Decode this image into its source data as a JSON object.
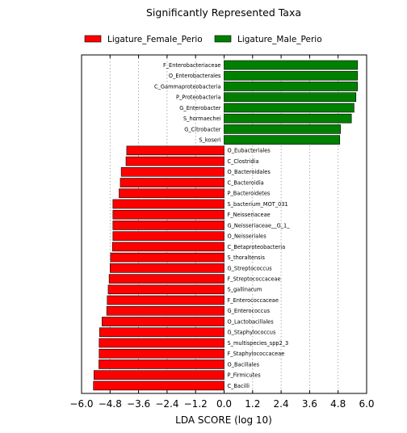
{
  "chart_data": {
    "type": "bar",
    "orientation": "horizontal",
    "title": "Significantly Represented Taxa",
    "xlabel": "LDA SCORE (log 10)",
    "xlim": [
      -6.0,
      6.0
    ],
    "xticks": [
      "−6.0",
      "−4.8",
      "−3.6",
      "−2.4",
      "−1.2",
      "0.0",
      "1.2",
      "2.4",
      "3.6",
      "4.8",
      "6.0"
    ],
    "xtick_values": [
      -6.0,
      -4.8,
      -3.6,
      -2.4,
      -1.2,
      0.0,
      1.2,
      2.4,
      3.6,
      4.8,
      6.0
    ],
    "grid": "vertical dotted",
    "legend_position": "top",
    "series": [
      {
        "name": "Ligature_Female_Perio",
        "color": "#ff0000"
      },
      {
        "name": "Ligature_Male_Perio",
        "color": "#008000"
      }
    ],
    "bars": [
      {
        "label": "F_Enterobacteriaceae",
        "value": 5.62,
        "group": "Ligature_Male_Perio"
      },
      {
        "label": "O_Enterobacterales",
        "value": 5.62,
        "group": "Ligature_Male_Perio"
      },
      {
        "label": "C_Gammaproteobacteria",
        "value": 5.62,
        "group": "Ligature_Male_Perio"
      },
      {
        "label": "P_Proteobacteria",
        "value": 5.55,
        "group": "Ligature_Male_Perio"
      },
      {
        "label": "G_Enterobacter",
        "value": 5.47,
        "group": "Ligature_Male_Perio"
      },
      {
        "label": "S_hormaechei",
        "value": 5.36,
        "group": "Ligature_Male_Perio"
      },
      {
        "label": "G_Citrobacter",
        "value": 4.9,
        "group": "Ligature_Male_Perio"
      },
      {
        "label": "S_koseri",
        "value": 4.87,
        "group": "Ligature_Male_Perio"
      },
      {
        "label": "O_Eubacteriales",
        "value": -4.1,
        "group": "Ligature_Female_Perio"
      },
      {
        "label": "C_Clostridia",
        "value": -4.13,
        "group": "Ligature_Female_Perio"
      },
      {
        "label": "O_Bacteroidales",
        "value": -4.33,
        "group": "Ligature_Female_Perio"
      },
      {
        "label": "C_Bacteroidia",
        "value": -4.37,
        "group": "Ligature_Female_Perio"
      },
      {
        "label": "P_Bacteroidetes",
        "value": -4.42,
        "group": "Ligature_Female_Perio"
      },
      {
        "label": "S_bacterium_MOT_031",
        "value": -4.68,
        "group": "Ligature_Female_Perio"
      },
      {
        "label": "F_Neisseriaceae",
        "value": -4.68,
        "group": "Ligature_Female_Perio"
      },
      {
        "label": "G_Neisseriaceae__G_1_",
        "value": -4.68,
        "group": "Ligature_Female_Perio"
      },
      {
        "label": "O_Neisseriales",
        "value": -4.68,
        "group": "Ligature_Female_Perio"
      },
      {
        "label": "C_Betaproteobacteria",
        "value": -4.7,
        "group": "Ligature_Female_Perio"
      },
      {
        "label": "S_thoraltensis",
        "value": -4.78,
        "group": "Ligature_Female_Perio"
      },
      {
        "label": "G_Streptococcus",
        "value": -4.8,
        "group": "Ligature_Female_Perio"
      },
      {
        "label": "F_Streptococcaceae",
        "value": -4.84,
        "group": "Ligature_Female_Perio"
      },
      {
        "label": "S_gallinarum",
        "value": -4.88,
        "group": "Ligature_Female_Perio"
      },
      {
        "label": "F_Enterococcaceae",
        "value": -4.92,
        "group": "Ligature_Female_Perio"
      },
      {
        "label": "G_Enterococcus",
        "value": -4.94,
        "group": "Ligature_Female_Perio"
      },
      {
        "label": "O_Lactobacillales",
        "value": -5.14,
        "group": "Ligature_Female_Perio"
      },
      {
        "label": "G_Staphylococcus",
        "value": -5.24,
        "group": "Ligature_Female_Perio"
      },
      {
        "label": "S_multispecies_spp2_3",
        "value": -5.26,
        "group": "Ligature_Female_Perio"
      },
      {
        "label": "F_Staphylococcaceae",
        "value": -5.26,
        "group": "Ligature_Female_Perio"
      },
      {
        "label": "O_Bacillales",
        "value": -5.27,
        "group": "Ligature_Female_Perio"
      },
      {
        "label": "P_Firmicutes",
        "value": -5.48,
        "group": "Ligature_Female_Perio"
      },
      {
        "label": "C_Bacilli",
        "value": -5.5,
        "group": "Ligature_Female_Perio"
      }
    ]
  }
}
